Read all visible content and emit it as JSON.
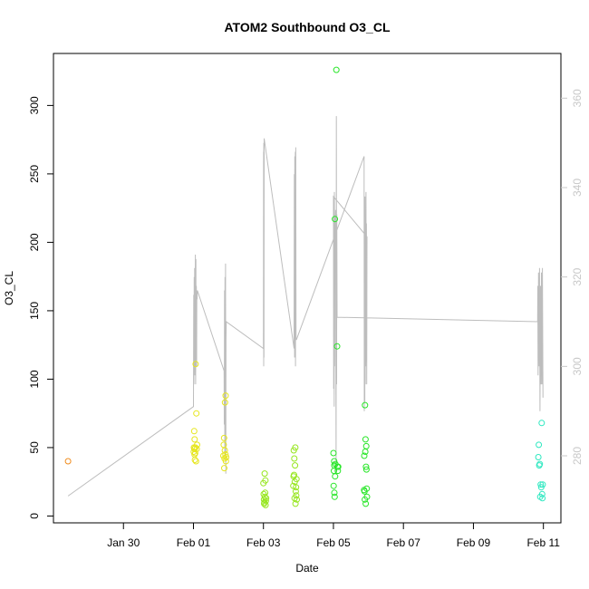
{
  "chart_data": {
    "type": "scatter",
    "title": "ATOM2 Southbound O3_CL",
    "xlabel": "Date",
    "ylabel": "O3_CL",
    "xlim": [
      "2017-01-28T00:00",
      "2017-02-11T12:00"
    ],
    "ylim": [
      -5,
      338
    ],
    "y2lim": [
      265,
      370
    ],
    "x_tick_labels": [
      "Jan 30",
      "Feb 01",
      "Feb 03",
      "Feb 05",
      "Feb 07",
      "Feb 09",
      "Feb 11"
    ],
    "x_ticks": [
      "2017-01-30",
      "2017-02-01",
      "2017-02-03",
      "2017-02-05",
      "2017-02-07",
      "2017-02-09",
      "2017-02-11"
    ],
    "y_ticks": [
      0,
      50,
      100,
      150,
      200,
      250,
      300
    ],
    "y2_ticks": [
      280,
      300,
      320,
      340,
      360
    ],
    "colors": {
      "orange": "#f08c1e",
      "yellow": "#e6e61e",
      "chartreuse": "#96e61e",
      "green": "#28e628",
      "teal": "#2ee8c0",
      "trace": "#bdbdbd",
      "right_axis": "#c8c8c8"
    },
    "series": [
      {
        "color_key": "orange",
        "points": [
          [
            "2017-01-28T10:00",
            40
          ]
        ]
      },
      {
        "color_key": "yellow",
        "points": [
          [
            "2017-02-01T00:12",
            47
          ],
          [
            "2017-02-01T00:20",
            50
          ],
          [
            "2017-02-01T00:30",
            62
          ],
          [
            "2017-02-01T00:40",
            49
          ],
          [
            "2017-02-01T00:50",
            56
          ],
          [
            "2017-02-01T01:00",
            41
          ],
          [
            "2017-02-01T01:10",
            46
          ],
          [
            "2017-02-01T01:20",
            50
          ],
          [
            "2017-02-01T01:30",
            111
          ],
          [
            "2017-02-01T01:45",
            40
          ],
          [
            "2017-02-01T02:00",
            75
          ],
          [
            "2017-02-01T02:15",
            49
          ],
          [
            "2017-02-01T02:30",
            52
          ],
          [
            "2017-02-01T00:45",
            45
          ],
          [
            "2017-02-01T20:30",
            44
          ],
          [
            "2017-02-01T20:45",
            52
          ],
          [
            "2017-02-01T21:00",
            57
          ],
          [
            "2017-02-01T21:10",
            35
          ],
          [
            "2017-02-01T21:20",
            42
          ],
          [
            "2017-02-01T21:30",
            48
          ],
          [
            "2017-02-01T21:40",
            83
          ],
          [
            "2017-02-01T21:55",
            45
          ],
          [
            "2017-02-01T22:05",
            88
          ],
          [
            "2017-02-01T22:15",
            40
          ],
          [
            "2017-02-01T22:25",
            43
          ]
        ]
      },
      {
        "color_key": "chartreuse",
        "points": [
          [
            "2017-02-03T00:00",
            24
          ],
          [
            "2017-02-03T00:10",
            16
          ],
          [
            "2017-02-03T00:20",
            12
          ],
          [
            "2017-02-03T00:30",
            9
          ],
          [
            "2017-02-03T00:40",
            10
          ],
          [
            "2017-02-03T00:50",
            31
          ],
          [
            "2017-02-03T01:00",
            14
          ],
          [
            "2017-02-03T01:10",
            17
          ],
          [
            "2017-02-03T01:20",
            26
          ],
          [
            "2017-02-03T01:30",
            8
          ],
          [
            "2017-02-03T01:40",
            11
          ],
          [
            "2017-02-03T01:50",
            13
          ],
          [
            "2017-02-03T20:30",
            22
          ],
          [
            "2017-02-03T20:40",
            29
          ],
          [
            "2017-02-03T20:50",
            48
          ],
          [
            "2017-02-03T21:00",
            30
          ],
          [
            "2017-02-03T21:10",
            42
          ],
          [
            "2017-02-03T21:20",
            13
          ],
          [
            "2017-02-03T21:30",
            25
          ],
          [
            "2017-02-03T21:40",
            37
          ],
          [
            "2017-02-03T21:50",
            50
          ],
          [
            "2017-02-03T22:00",
            9
          ],
          [
            "2017-02-03T22:10",
            18
          ],
          [
            "2017-02-03T22:20",
            21
          ],
          [
            "2017-02-03T22:30",
            15
          ],
          [
            "2017-02-03T22:40",
            27
          ],
          [
            "2017-02-03T22:50",
            12
          ]
        ]
      },
      {
        "color_key": "green",
        "points": [
          [
            "2017-02-05T00:00",
            46
          ],
          [
            "2017-02-05T00:10",
            22
          ],
          [
            "2017-02-05T00:20",
            33
          ],
          [
            "2017-02-05T00:30",
            40
          ],
          [
            "2017-02-05T00:40",
            17
          ],
          [
            "2017-02-05T00:50",
            14
          ],
          [
            "2017-02-05T01:00",
            217
          ],
          [
            "2017-02-05T01:10",
            29
          ],
          [
            "2017-02-05T01:20",
            38
          ],
          [
            "2017-02-05T02:00",
            326
          ],
          [
            "2017-02-05T02:30",
            124
          ],
          [
            "2017-02-05T02:45",
            36
          ],
          [
            "2017-02-05T03:00",
            33
          ],
          [
            "2017-02-05T03:15",
            36
          ],
          [
            "2017-02-05T00:35",
            37
          ],
          [
            "2017-02-05T21:00",
            19
          ],
          [
            "2017-02-05T21:10",
            44
          ],
          [
            "2017-02-05T21:20",
            18
          ],
          [
            "2017-02-05T21:30",
            12
          ],
          [
            "2017-02-05T21:40",
            81
          ],
          [
            "2017-02-05T21:50",
            47
          ],
          [
            "2017-02-05T22:00",
            56
          ],
          [
            "2017-02-05T22:10",
            9
          ],
          [
            "2017-02-05T22:20",
            36
          ],
          [
            "2017-02-05T22:30",
            51
          ],
          [
            "2017-02-05T22:40",
            34
          ],
          [
            "2017-02-05T22:50",
            20
          ],
          [
            "2017-02-05T23:00",
            14
          ]
        ]
      },
      {
        "color_key": "teal",
        "points": [
          [
            "2017-02-10T20:30",
            43
          ],
          [
            "2017-02-10T20:50",
            52
          ],
          [
            "2017-02-10T21:10",
            37
          ],
          [
            "2017-02-10T21:30",
            38
          ],
          [
            "2017-02-10T21:50",
            14
          ],
          [
            "2017-02-10T22:10",
            23
          ],
          [
            "2017-02-10T22:30",
            21
          ],
          [
            "2017-02-10T22:50",
            68
          ],
          [
            "2017-02-10T23:10",
            16
          ],
          [
            "2017-02-10T23:20",
            13
          ],
          [
            "2017-02-10T23:30",
            23
          ]
        ]
      }
    ],
    "trace_right_axis": [
      [
        "2017-01-28T10:00",
        271
      ],
      [
        "2017-02-01T00:00",
        291
      ],
      [
        "2017-02-01T00:10",
        316
      ],
      [
        "2017-02-01T00:20",
        296
      ],
      [
        "2017-02-01T00:30",
        320
      ],
      [
        "2017-02-01T00:40",
        300
      ],
      [
        "2017-02-01T00:50",
        322
      ],
      [
        "2017-02-01T01:00",
        298
      ],
      [
        "2017-02-01T01:10",
        318
      ],
      [
        "2017-02-01T01:20",
        325
      ],
      [
        "2017-02-01T01:30",
        296
      ],
      [
        "2017-02-01T01:40",
        324
      ],
      [
        "2017-02-01T01:50",
        303
      ],
      [
        "2017-02-01T02:00",
        318
      ],
      [
        "2017-02-01T02:10",
        300
      ],
      [
        "2017-02-01T02:20",
        317
      ],
      [
        "2017-02-01T02:30",
        315
      ],
      [
        "2017-02-01T02:40",
        317
      ],
      [
        "2017-02-01T21:00",
        299
      ],
      [
        "2017-02-01T21:10",
        287
      ],
      [
        "2017-02-01T21:20",
        317
      ],
      [
        "2017-02-01T21:30",
        280
      ],
      [
        "2017-02-01T21:40",
        320
      ],
      [
        "2017-02-01T21:50",
        290
      ],
      [
        "2017-02-01T22:00",
        323
      ],
      [
        "2017-02-01T22:10",
        276
      ],
      [
        "2017-02-01T22:20",
        306
      ],
      [
        "2017-02-01T22:30",
        310
      ],
      [
        "2017-02-03T00:00",
        304
      ],
      [
        "2017-02-03T00:05",
        348
      ],
      [
        "2017-02-03T00:10",
        300
      ],
      [
        "2017-02-03T00:15",
        350
      ],
      [
        "2017-02-03T00:20",
        302
      ],
      [
        "2017-02-03T00:30",
        351
      ],
      [
        "2017-02-03T21:00",
        304
      ],
      [
        "2017-02-03T21:10",
        343
      ],
      [
        "2017-02-03T21:20",
        302
      ],
      [
        "2017-02-03T21:30",
        347
      ],
      [
        "2017-02-03T21:40",
        305
      ],
      [
        "2017-02-03T21:50",
        348
      ],
      [
        "2017-02-03T22:00",
        300
      ],
      [
        "2017-02-03T22:10",
        349
      ],
      [
        "2017-02-03T22:20",
        306
      ],
      [
        "2017-02-03T22:40",
        306
      ],
      [
        "2017-02-05T21:00",
        347
      ],
      [
        "2017-02-05T21:10",
        290
      ],
      [
        "2017-02-05T21:20",
        336
      ],
      [
        "2017-02-05T21:30",
        292
      ],
      [
        "2017-02-05T21:40",
        338
      ],
      [
        "2017-02-05T21:50",
        296
      ],
      [
        "2017-02-05T22:00",
        330
      ],
      [
        "2017-02-05T22:10",
        300
      ],
      [
        "2017-02-05T22:20",
        339
      ],
      [
        "2017-02-05T22:30",
        301
      ],
      [
        "2017-02-05T22:40",
        332
      ],
      [
        "2017-02-05T22:50",
        296
      ],
      [
        "2017-02-05T23:00",
        329
      ],
      [
        "2017-02-05T00:00",
        338
      ],
      [
        "2017-02-05T00:10",
        295
      ],
      [
        "2017-02-05T00:20",
        337
      ],
      [
        "2017-02-05T00:30",
        291
      ],
      [
        "2017-02-05T00:40",
        339
      ],
      [
        "2017-02-05T00:50",
        300
      ],
      [
        "2017-02-05T01:00",
        330
      ],
      [
        "2017-02-05T01:30",
        335
      ],
      [
        "2017-02-05T01:50",
        276
      ],
      [
        "2017-02-05T02:00",
        356
      ],
      [
        "2017-02-05T02:10",
        296
      ],
      [
        "2017-02-05T02:20",
        334
      ],
      [
        "2017-02-05T02:30",
        311
      ],
      [
        "2017-02-10T20:00",
        310
      ],
      [
        "2017-02-10T20:10",
        318
      ],
      [
        "2017-02-10T20:20",
        298
      ],
      [
        "2017-02-10T20:40",
        321
      ],
      [
        "2017-02-10T21:00",
        300
      ],
      [
        "2017-02-10T21:20",
        322
      ],
      [
        "2017-02-10T21:40",
        290
      ],
      [
        "2017-02-10T22:00",
        318
      ],
      [
        "2017-02-10T22:20",
        296
      ],
      [
        "2017-02-10T22:40",
        321
      ],
      [
        "2017-02-10T23:00",
        296
      ],
      [
        "2017-02-10T23:20",
        322
      ],
      [
        "2017-02-10T23:40",
        293
      ]
    ]
  }
}
